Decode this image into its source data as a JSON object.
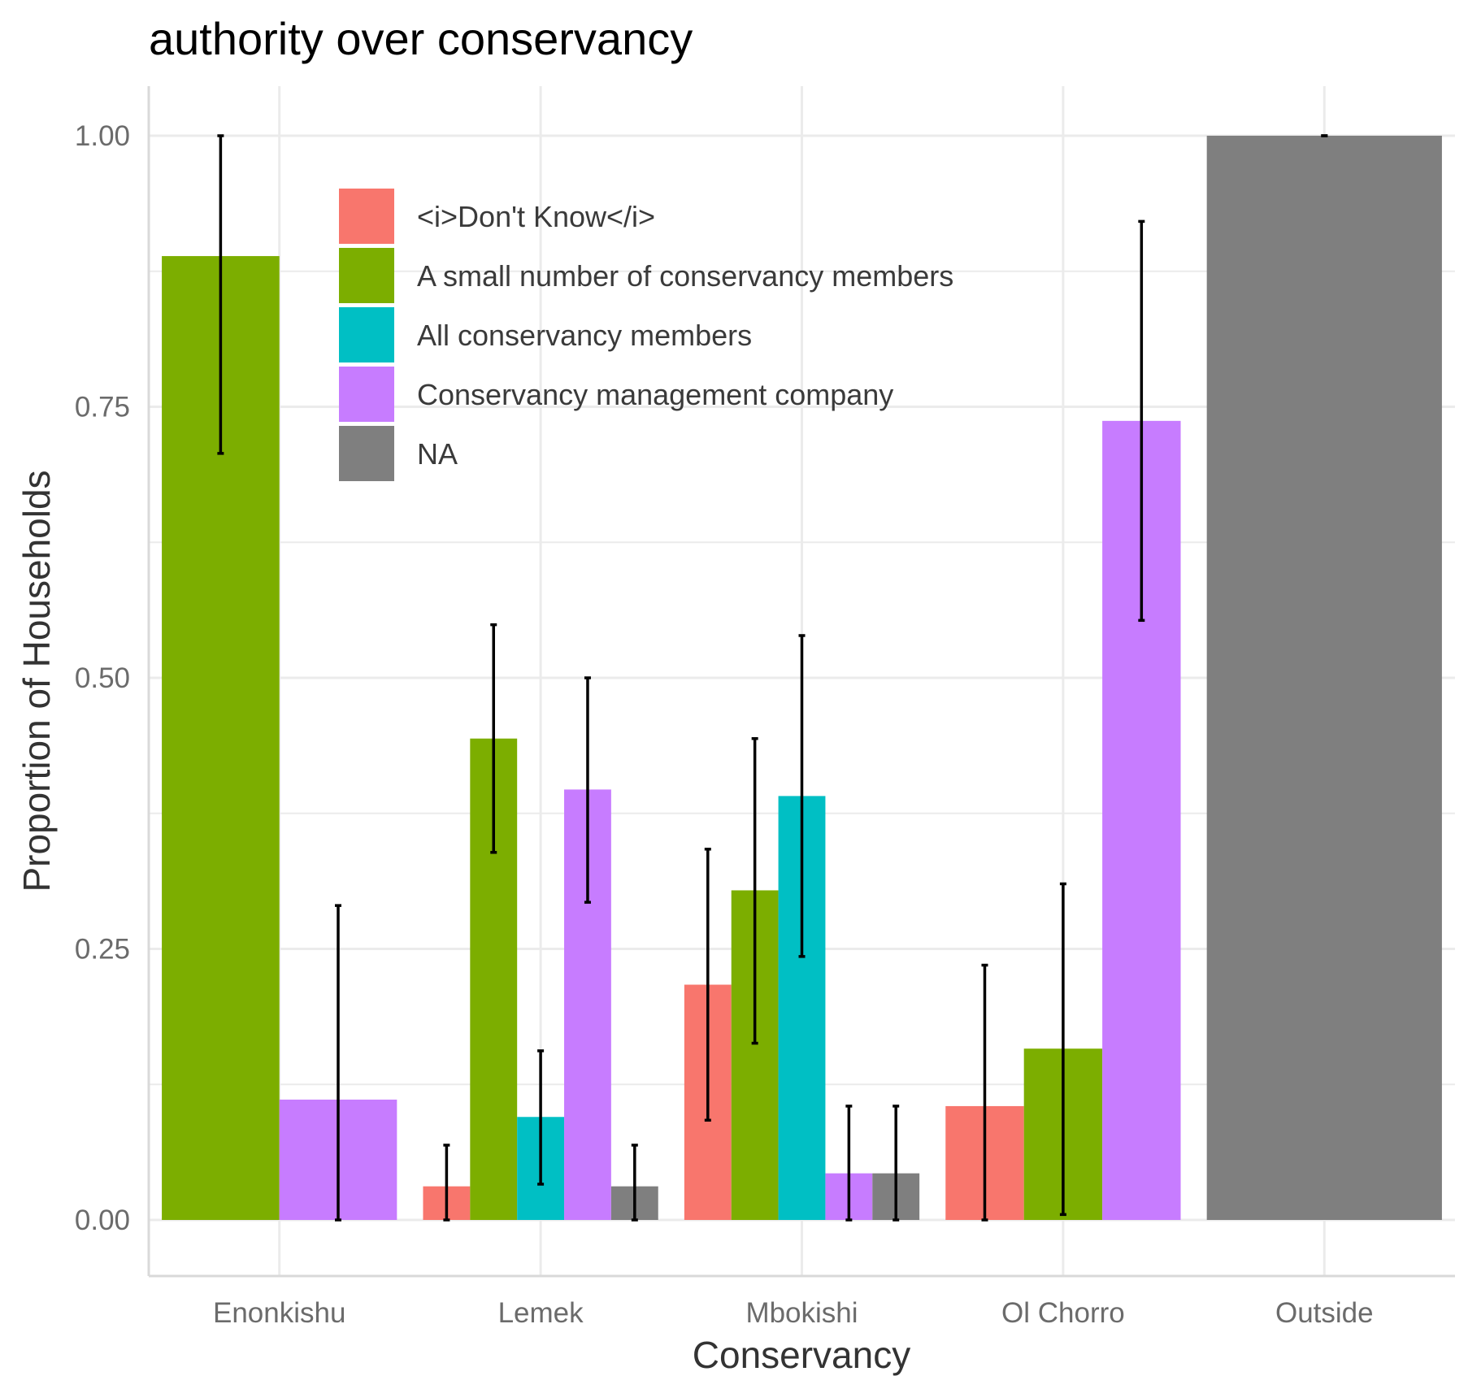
{
  "chart_data": {
    "type": "bar",
    "title": "authority over conservancy",
    "xlabel": "Conservancy",
    "ylabel": "Proportion of Households",
    "categories": [
      "Enonkishu",
      "Lemek",
      "Mbokishi",
      "Ol Chorro",
      "Outside"
    ],
    "y_ticks": [
      "0.00",
      "0.25",
      "0.50",
      "0.75",
      "1.00"
    ],
    "y_tick_values": [
      0,
      0.25,
      0.5,
      0.75,
      1.0
    ],
    "ylim": [
      -0.05,
      1.05
    ],
    "grid": true,
    "bar_layout": "dodged",
    "legend_position": "inside-top-left",
    "series": [
      {
        "name": "<i>Don't Know</i>",
        "color": "#F8766D",
        "values": [
          null,
          0.031,
          0.217,
          0.105,
          null
        ],
        "err_low": [
          null,
          0.0,
          0.092,
          0.0,
          null
        ],
        "err_high": [
          null,
          0.069,
          0.342,
          0.235,
          null
        ]
      },
      {
        "name": "A small number of conservancy members",
        "color": "#7CAE00",
        "values": [
          0.889,
          0.444,
          0.304,
          0.158,
          null
        ],
        "err_low": [
          0.707,
          0.339,
          0.163,
          0.005,
          null
        ],
        "err_high": [
          1.0,
          0.549,
          0.444,
          0.31,
          null
        ]
      },
      {
        "name": "All conservancy members",
        "color": "#00BFC4",
        "values": [
          null,
          0.095,
          0.391,
          null,
          null
        ],
        "err_low": [
          null,
          0.033,
          0.243,
          null,
          null
        ],
        "err_high": [
          null,
          0.156,
          0.539,
          null,
          null
        ]
      },
      {
        "name": "Conservancy management company",
        "color": "#C77CFF",
        "values": [
          0.111,
          0.397,
          0.043,
          0.737,
          null
        ],
        "err_low": [
          0.0,
          0.293,
          0.0,
          0.553,
          null
        ],
        "err_high": [
          0.29,
          0.5,
          0.105,
          0.921,
          null
        ]
      },
      {
        "name": "NA",
        "color": "#7F7F7F",
        "values": [
          null,
          0.031,
          0.043,
          null,
          1.0
        ],
        "err_low": [
          null,
          0.0,
          0.0,
          null,
          1.0
        ],
        "err_high": [
          null,
          0.069,
          0.105,
          null,
          1.0
        ]
      }
    ],
    "colors": {
      "grid": "#EBEBEB",
      "axis_line": "#D9D9D9",
      "errorbar": "#000000"
    }
  }
}
